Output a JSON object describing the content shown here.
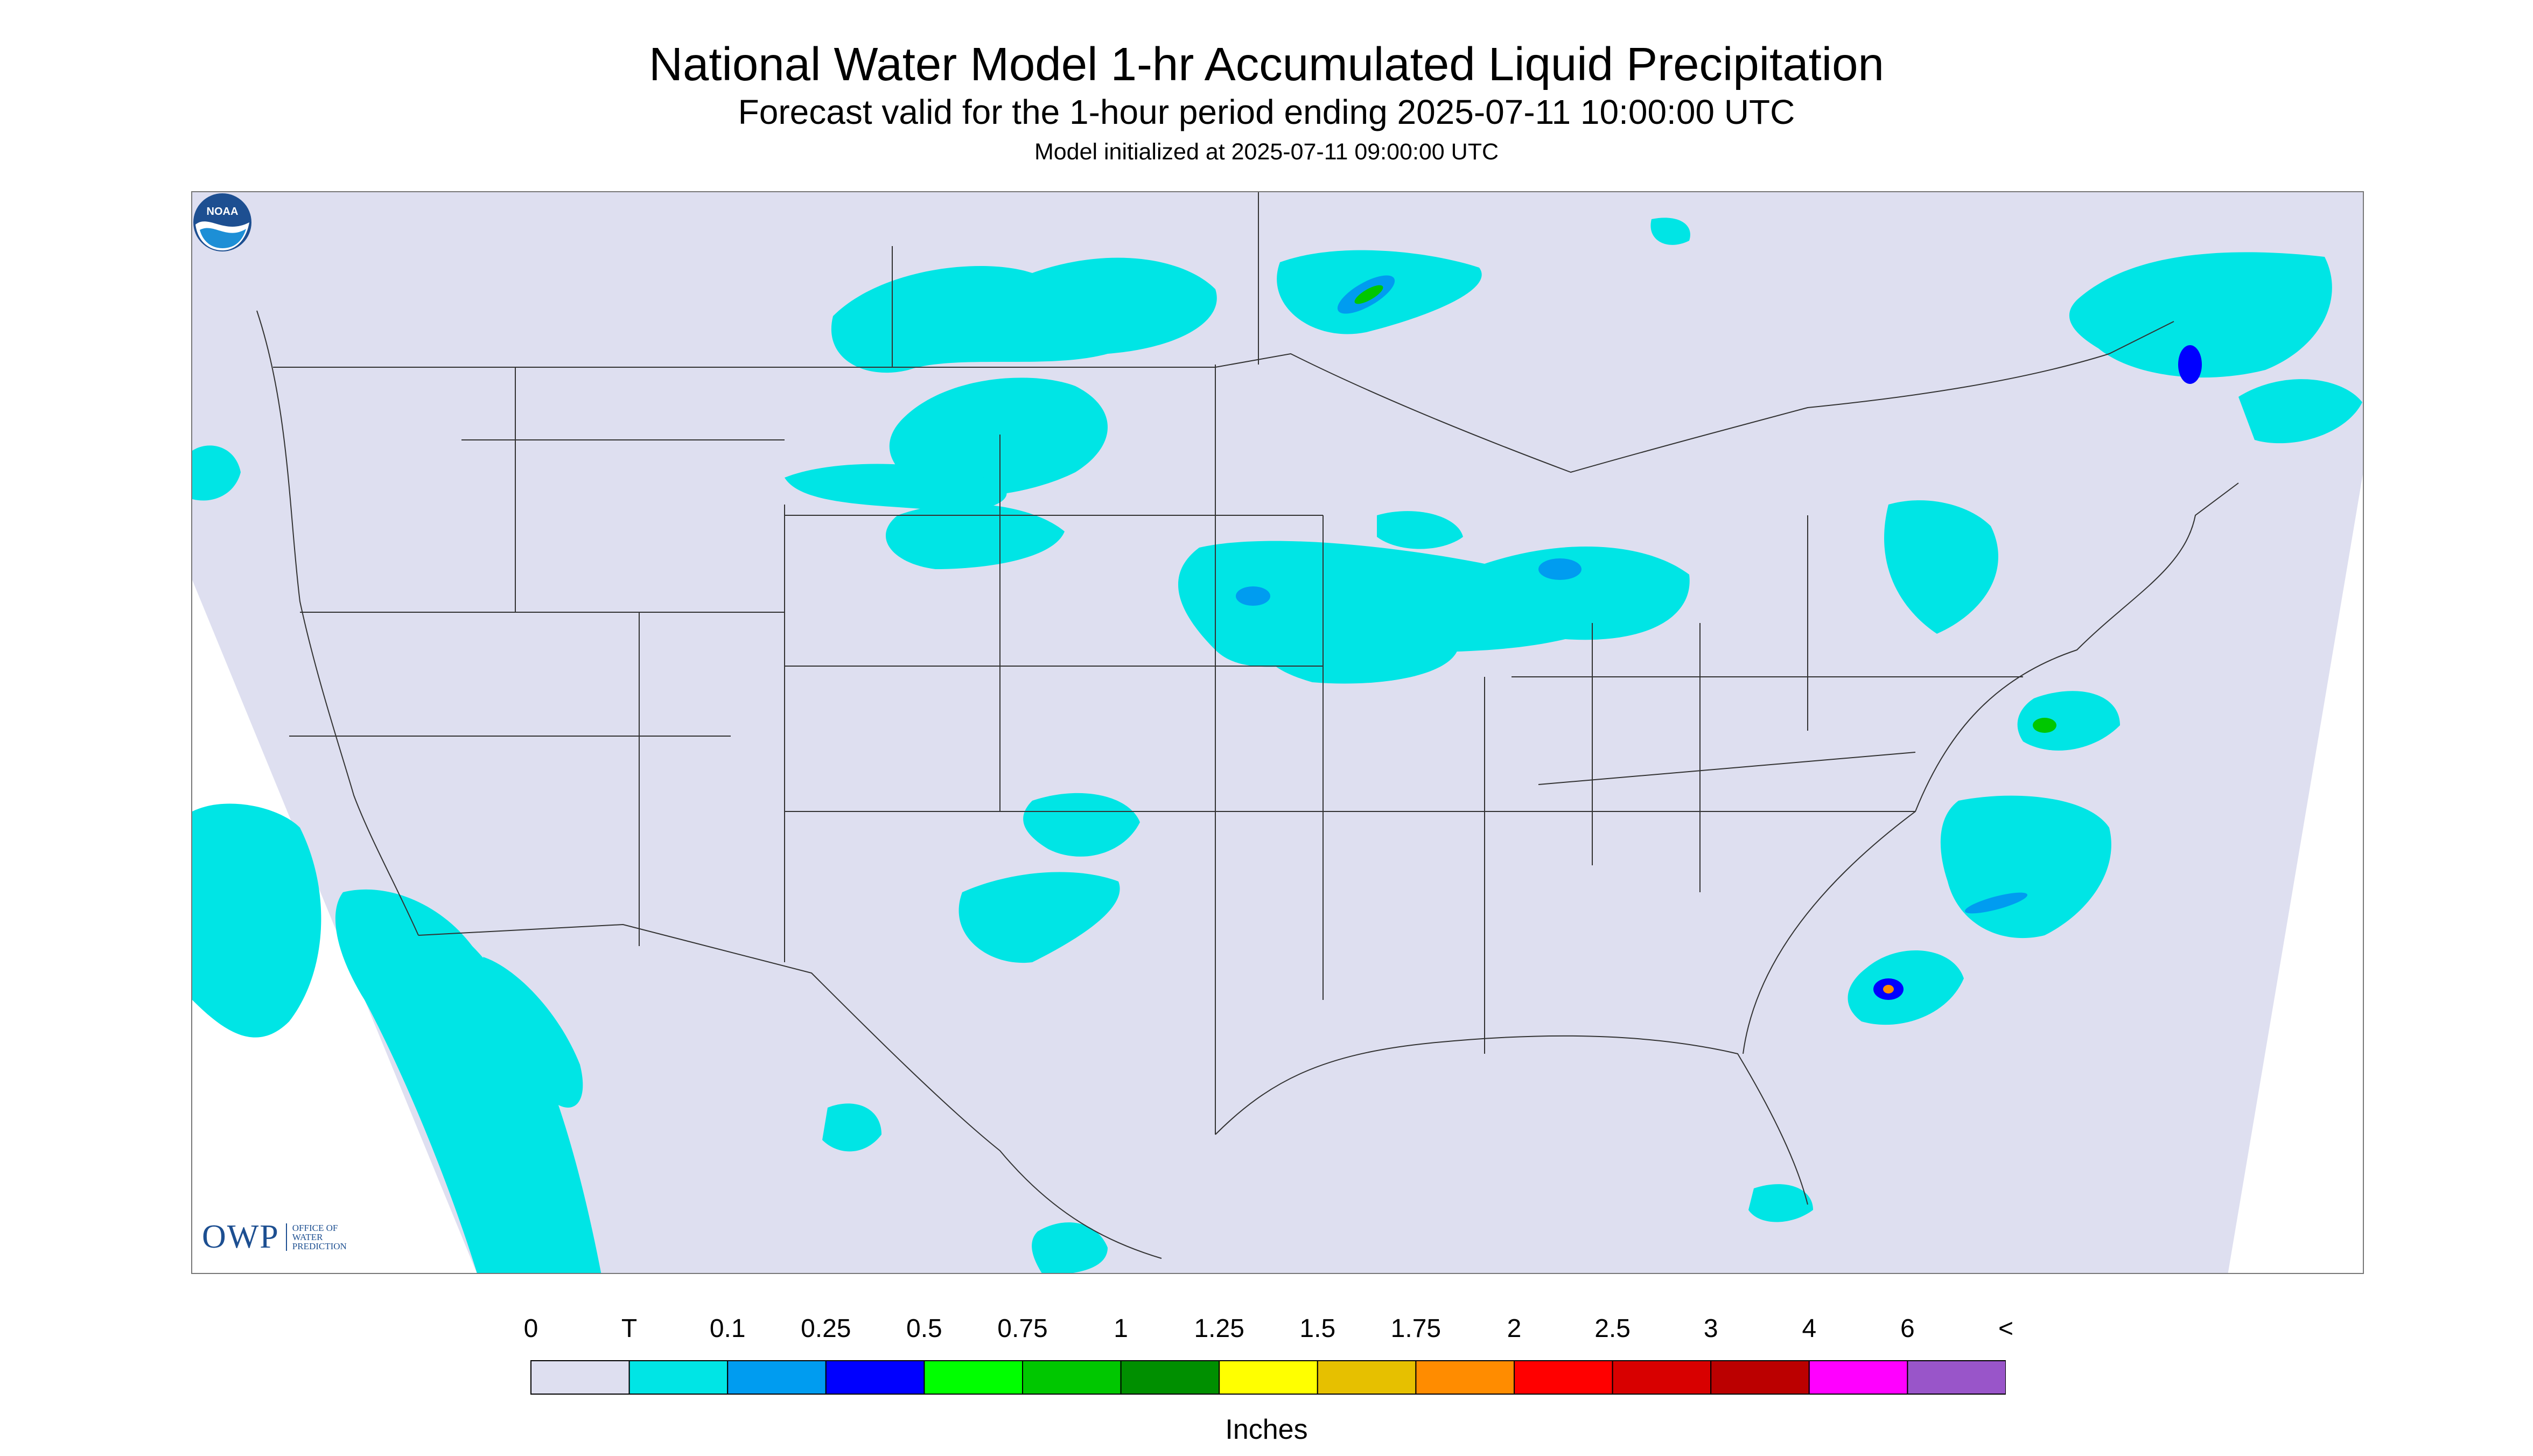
{
  "header": {
    "title": "National Water Model 1-hr Accumulated Liquid Precipitation",
    "subtitle": "Forecast valid for the 1-hour period ending 2025-07-11 10:00:00 UTC",
    "init_line": "Model initialized at 2025-07-11 09:00:00 UTC"
  },
  "logos": {
    "owp_text": "OWP",
    "owp_sub": [
      "OFFICE OF",
      "WATER",
      "PREDICTION"
    ],
    "noaa_text": "NOAA"
  },
  "colors": {
    "background_map": "#dedff0",
    "trace": "#00e5e5",
    "outside_domain": "#ffffff",
    "borders": "#333333"
  },
  "legend": {
    "labels": [
      "0",
      "T",
      "0.1",
      "0.25",
      "0.5",
      "0.75",
      "1",
      "1.25",
      "1.5",
      "1.75",
      "2",
      "2.5",
      "3",
      "4",
      "6",
      "<"
    ],
    "colors": [
      "#dedff0",
      "#00e5e5",
      "#009cf0",
      "#0000ff",
      "#00ff00",
      "#00c700",
      "#008f00",
      "#ffff00",
      "#e6c000",
      "#ff8c00",
      "#ff0000",
      "#d80000",
      "#bb0000",
      "#ff00ff",
      "#9955c9"
    ],
    "units": "Inches"
  }
}
